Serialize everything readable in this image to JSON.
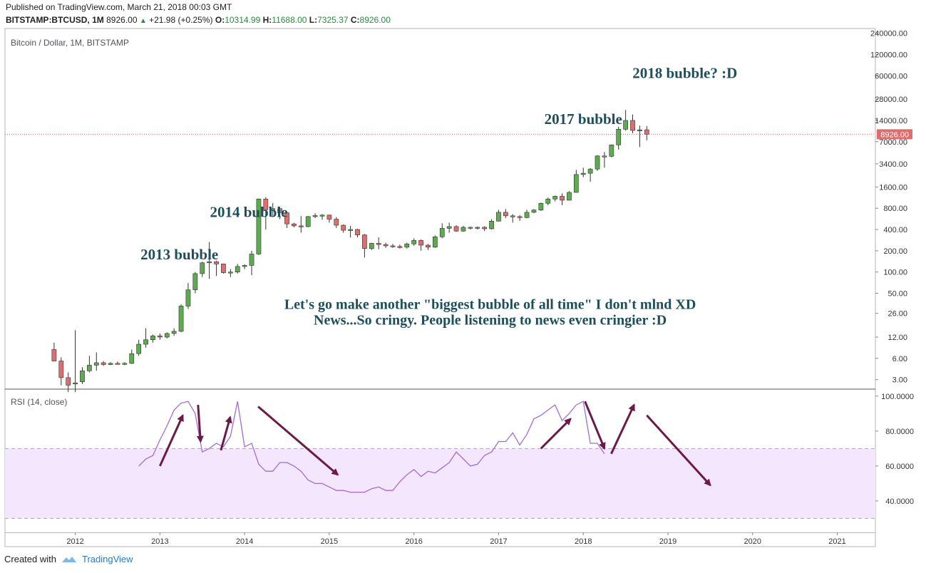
{
  "published": "Published on TradingView.com, March 21, 2018 00:03 GMT",
  "header": {
    "symbol": "BITSTAMP:BTCUSD, 1M",
    "price": "8926.00",
    "change": "+21.98 (+0.25%)",
    "o_label": "O:",
    "o": "10314.99",
    "h_label": "H:",
    "h": "11688.00",
    "l_label": "L:",
    "l": "7325.37",
    "c_label": "C:",
    "c": "8926.00"
  },
  "footer": {
    "created_with": "Created with",
    "brand": "TradingView"
  },
  "colors": {
    "up": "#5cab4e",
    "down": "#e06d6d",
    "annotation": "#1e4e5c",
    "rsi": "#a36bd6",
    "arrow": "#6b1a4a",
    "rsi_band": "#f4e6fc",
    "price_line": "#e06d6d"
  },
  "chart_data": [
    {
      "type": "candlestick",
      "title": "Bitcoin / Dollar, 1M, BITSTAMP",
      "scale": "log",
      "ylim": [
        2.2,
        280000
      ],
      "xlim": [
        2011.17,
        2021.45
      ],
      "x_ticks": [
        "2012",
        "2013",
        "2014",
        "2015",
        "2016",
        "2017",
        "2018",
        "2019",
        "2020",
        "2021"
      ],
      "y_ticks": [
        "240000.00",
        "120000.00",
        "60000.00",
        "28000.00",
        "14000.00",
        "7000.00",
        "3400.00",
        "1600.00",
        "800.00",
        "400.00",
        "200.00",
        "100.00",
        "50.00",
        "26.00",
        "12.00",
        "6.00",
        "3.00"
      ],
      "last_price_label": "8926.00",
      "last_price": 8926,
      "annotations": [
        {
          "text": "2013 bubble",
          "x": 2013.23,
          "y": 150
        },
        {
          "text": "2014 bubble",
          "x": 2014.05,
          "y": 600
        },
        {
          "text": "2017 bubble",
          "x": 2018.0,
          "y": 12400
        },
        {
          "text": "2018 bubble? :D",
          "x": 2019.2,
          "y": 56000
        },
        {
          "text": "Let's go make another \"biggest bubble of all time\" I don't mlnd XD",
          "x": 2016.9,
          "y": 30
        },
        {
          "text": "News...So cringy. People listening to news even cringier :D",
          "x": 2016.9,
          "y": 18
        }
      ],
      "candles": [
        {
          "t": "2011-09",
          "o": 8.0,
          "h": 10.0,
          "l": 6.0,
          "c": 5.5
        },
        {
          "t": "2011-10",
          "o": 5.5,
          "h": 6.2,
          "l": 2.5,
          "c": 3.2
        },
        {
          "t": "2011-11",
          "o": 3.2,
          "h": 3.8,
          "l": 2.0,
          "c": 2.5
        },
        {
          "t": "2011-12",
          "o": 2.6,
          "h": 15.0,
          "l": 2.0,
          "c": 2.7
        },
        {
          "t": "2012-01",
          "o": 2.8,
          "h": 4.5,
          "l": 2.6,
          "c": 4.0
        },
        {
          "t": "2012-02",
          "o": 4.0,
          "h": 6.5,
          "l": 3.8,
          "c": 4.8
        },
        {
          "t": "2012-03",
          "o": 4.8,
          "h": 7.3,
          "l": 4.0,
          "c": 5.2
        },
        {
          "t": "2012-04",
          "o": 5.2,
          "h": 5.5,
          "l": 4.7,
          "c": 4.9
        },
        {
          "t": "2012-05",
          "o": 4.9,
          "h": 5.3,
          "l": 4.8,
          "c": 5.1
        },
        {
          "t": "2012-06",
          "o": 5.1,
          "h": 5.4,
          "l": 4.9,
          "c": 5.0
        },
        {
          "t": "2012-07",
          "o": 5.0,
          "h": 5.3,
          "l": 4.8,
          "c": 5.1
        },
        {
          "t": "2012-08",
          "o": 5.1,
          "h": 8.0,
          "l": 5.0,
          "c": 7.0
        },
        {
          "t": "2012-09",
          "o": 7.0,
          "h": 11.0,
          "l": 6.5,
          "c": 9.5
        },
        {
          "t": "2012-10",
          "o": 9.5,
          "h": 16.0,
          "l": 8.5,
          "c": 11.0
        },
        {
          "t": "2012-11",
          "o": 11.0,
          "h": 13.0,
          "l": 10.0,
          "c": 12.5
        },
        {
          "t": "2012-12",
          "o": 12.5,
          "h": 13.5,
          "l": 11.0,
          "c": 12.0
        },
        {
          "t": "2013-01",
          "o": 12.0,
          "h": 14.0,
          "l": 11.5,
          "c": 13.5
        },
        {
          "t": "2013-02",
          "o": 13.5,
          "h": 16.0,
          "l": 12.5,
          "c": 14.5
        },
        {
          "t": "2013-03",
          "o": 14.5,
          "h": 35.0,
          "l": 14.0,
          "c": 33.0
        },
        {
          "t": "2013-04",
          "o": 33.0,
          "h": 70.0,
          "l": 30.0,
          "c": 56.0
        },
        {
          "t": "2013-05",
          "o": 56.0,
          "h": 100.0,
          "l": 50.0,
          "c": 95.0
        },
        {
          "t": "2013-06",
          "o": 95.0,
          "h": 140.0,
          "l": 85.0,
          "c": 135.0
        },
        {
          "t": "2013-07",
          "o": 135.0,
          "h": 266.0,
          "l": 80.0,
          "c": 140.0
        },
        {
          "t": "2013-08",
          "o": 140.0,
          "h": 145.0,
          "l": 88.0,
          "c": 130.0
        },
        {
          "t": "2013-09",
          "o": 130.0,
          "h": 132.0,
          "l": 95.0,
          "c": 98.0
        },
        {
          "t": "2013-10",
          "o": 98.0,
          "h": 110.0,
          "l": 85.0,
          "c": 100.0
        },
        {
          "t": "2013-11",
          "o": 100.0,
          "h": 130.0,
          "l": 95.0,
          "c": 120.0
        },
        {
          "t": "2013-12",
          "o": 120.0,
          "h": 128.0,
          "l": 110.0,
          "c": 124.0
        },
        {
          "t": "2014-01",
          "o": 124.0,
          "h": 200.0,
          "l": 90.0,
          "c": 180.0
        },
        {
          "t": "2014-02",
          "o": 180.0,
          "h": 1100.0,
          "l": 175.0,
          "c": 1080.0
        },
        {
          "t": "2014-03",
          "o": 1080.0,
          "h": 1150.0,
          "l": 400.0,
          "c": 760.0
        },
        {
          "t": "2014-04",
          "o": 760.0,
          "h": 950.0,
          "l": 600.0,
          "c": 790.0
        },
        {
          "t": "2014-05",
          "o": 790.0,
          "h": 800.0,
          "l": 560.0,
          "c": 690.0
        },
        {
          "t": "2014-06",
          "o": 690.0,
          "h": 720.0,
          "l": 420.0,
          "c": 480.0
        },
        {
          "t": "2014-07",
          "o": 480.0,
          "h": 500.0,
          "l": 430.0,
          "c": 450.0
        },
        {
          "t": "2014-08",
          "o": 450.0,
          "h": 620.0,
          "l": 360.0,
          "c": 440.0
        },
        {
          "t": "2014-09",
          "o": 440.0,
          "h": 620.0,
          "l": 430.0,
          "c": 610.0
        },
        {
          "t": "2014-10",
          "o": 610.0,
          "h": 680.0,
          "l": 580.0,
          "c": 630.0
        },
        {
          "t": "2014-11",
          "o": 630.0,
          "h": 660.0,
          "l": 550.0,
          "c": 640.0
        },
        {
          "t": "2014-12",
          "o": 640.0,
          "h": 650.0,
          "l": 500.0,
          "c": 560.0
        },
        {
          "t": "2015-01",
          "o": 560.0,
          "h": 600.0,
          "l": 420.0,
          "c": 460.0
        },
        {
          "t": "2015-02",
          "o": 460.0,
          "h": 470.0,
          "l": 360.0,
          "c": 390.0
        },
        {
          "t": "2015-03",
          "o": 390.0,
          "h": 450.0,
          "l": 310.0,
          "c": 400.0
        },
        {
          "t": "2015-04",
          "o": 400.0,
          "h": 410.0,
          "l": 310.0,
          "c": 335.0
        },
        {
          "t": "2015-05",
          "o": 335.0,
          "h": 345.0,
          "l": 160.0,
          "c": 215.0
        },
        {
          "t": "2015-06",
          "o": 215.0,
          "h": 260.0,
          "l": 205.0,
          "c": 255.0
        },
        {
          "t": "2015-07",
          "o": 255.0,
          "h": 310.0,
          "l": 210.0,
          "c": 245.0
        },
        {
          "t": "2015-08",
          "o": 245.0,
          "h": 260.0,
          "l": 220.0,
          "c": 235.0
        },
        {
          "t": "2015-09",
          "o": 235.0,
          "h": 250.0,
          "l": 220.0,
          "c": 230.0
        },
        {
          "t": "2015-10",
          "o": 230.0,
          "h": 245.0,
          "l": 215.0,
          "c": 225.0
        },
        {
          "t": "2015-11",
          "o": 225.0,
          "h": 260.0,
          "l": 215.0,
          "c": 250.0
        },
        {
          "t": "2015-12",
          "o": 250.0,
          "h": 300.0,
          "l": 235.0,
          "c": 280.0
        },
        {
          "t": "2016-01",
          "o": 280.0,
          "h": 290.0,
          "l": 200.0,
          "c": 240.0
        },
        {
          "t": "2016-02",
          "o": 240.0,
          "h": 250.0,
          "l": 205.0,
          "c": 225.0
        },
        {
          "t": "2016-03",
          "o": 225.0,
          "h": 330.0,
          "l": 220.0,
          "c": 315.0
        },
        {
          "t": "2016-04",
          "o": 315.0,
          "h": 490.0,
          "l": 300.0,
          "c": 415.0
        },
        {
          "t": "2016-05",
          "o": 415.0,
          "h": 500.0,
          "l": 360.0,
          "c": 440.0
        },
        {
          "t": "2016-06",
          "o": 440.0,
          "h": 460.0,
          "l": 370.0,
          "c": 380.0
        },
        {
          "t": "2016-07",
          "o": 380.0,
          "h": 450.0,
          "l": 370.0,
          "c": 430.0
        },
        {
          "t": "2016-08",
          "o": 430.0,
          "h": 440.0,
          "l": 400.0,
          "c": 415.0
        },
        {
          "t": "2016-09",
          "o": 415.0,
          "h": 440.0,
          "l": 400.0,
          "c": 430.0
        },
        {
          "t": "2016-10",
          "o": 430.0,
          "h": 445.0,
          "l": 380.0,
          "c": 410.0
        },
        {
          "t": "2016-11",
          "o": 410.0,
          "h": 560.0,
          "l": 400.0,
          "c": 525.0
        },
        {
          "t": "2016-12",
          "o": 525.0,
          "h": 760.0,
          "l": 520.0,
          "c": 700.0
        },
        {
          "t": "2017-01",
          "o": 700.0,
          "h": 780.0,
          "l": 580.0,
          "c": 625.0
        },
        {
          "t": "2017-02",
          "o": 625.0,
          "h": 660.0,
          "l": 500.0,
          "c": 610.0
        },
        {
          "t": "2017-03",
          "o": 610.0,
          "h": 640.0,
          "l": 530.0,
          "c": 590.0
        },
        {
          "t": "2017-04",
          "o": 590.0,
          "h": 760.0,
          "l": 580.0,
          "c": 700.0
        },
        {
          "t": "2017-05",
          "o": 700.0,
          "h": 780.0,
          "l": 680.0,
          "c": 755.0
        },
        {
          "t": "2017-06",
          "o": 755.0,
          "h": 960.0,
          "l": 730.0,
          "c": 940.0
        },
        {
          "t": "2017-07",
          "o": 940.0,
          "h": 1130.0,
          "l": 880.0,
          "c": 1080.0
        },
        {
          "t": "2017-08",
          "o": 1080.0,
          "h": 1210.0,
          "l": 1000.0,
          "c": 1180.0
        },
        {
          "t": "2017-09",
          "o": 1180.0,
          "h": 1300.0,
          "l": 880.0,
          "c": 1040.0
        },
        {
          "t": "2017-10",
          "o": 1040.0,
          "h": 1400.0,
          "l": 1030.0,
          "c": 1340.0
        },
        {
          "t": "2017-11",
          "o": 1340.0,
          "h": 2800.0,
          "l": 1330.0,
          "c": 2400.0
        },
        {
          "t": "2017-12",
          "o": 2400.0,
          "h": 3000.0,
          "l": 2200.0,
          "c": 2500.0
        },
        {
          "t": "2018-01",
          "o": 2500.0,
          "h": 2950.0,
          "l": 1900.0,
          "c": 2870.0
        },
        {
          "t": "2018-02",
          "o": 2870.0,
          "h": 4500.0,
          "l": 2700.0,
          "c": 4400.0
        },
        {
          "t": "2018-03",
          "o": 4400.0,
          "h": 5000.0,
          "l": 3000.0,
          "c": 4350.0
        },
        {
          "t": "2018-04",
          "o": 4350.0,
          "h": 6400.0,
          "l": 4200.0,
          "c": 6300.0
        },
        {
          "t": "2018-05",
          "o": 6300.0,
          "h": 11400.0,
          "l": 5400.0,
          "c": 10500.0
        },
        {
          "t": "2018-06",
          "o": 10500.0,
          "h": 19700.0,
          "l": 10000.0,
          "c": 14000.0
        },
        {
          "t": "2018-07",
          "o": 14000.0,
          "h": 17000.0,
          "l": 9200.0,
          "c": 10100.0
        },
        {
          "t": "2018-08",
          "o": 10100.0,
          "h": 11800.0,
          "l": 5900.0,
          "c": 10300.0
        },
        {
          "t": "2018-09",
          "o": 10315.0,
          "h": 11688.0,
          "l": 7325.0,
          "c": 8926.0
        }
      ]
    },
    {
      "type": "line",
      "title": "RSI (14, close)",
      "ylim": [
        22,
        104
      ],
      "band": [
        30,
        70
      ],
      "y_ticks": [
        "100.0000",
        "80.0000",
        "60.0000",
        "40.0000"
      ],
      "series": [
        {
          "name": "RSI",
          "values": [
            60,
            64,
            66,
            75,
            83,
            92,
            96,
            97,
            90,
            68,
            70,
            73,
            71,
            77,
            97,
            71,
            73,
            61,
            57,
            57,
            62,
            62,
            60,
            57,
            52,
            50,
            50,
            48,
            46,
            46,
            45,
            45,
            45,
            47,
            48,
            46,
            46,
            51,
            55,
            58,
            54,
            57,
            56,
            59,
            62,
            68,
            64,
            60,
            61,
            66,
            68,
            74,
            74,
            79,
            72,
            78,
            87,
            89,
            92,
            95,
            86,
            90,
            95,
            97,
            73,
            73,
            67
          ],
          "start": 2012.75
        }
      ],
      "arrows": [
        {
          "from": [
            2013.0,
            60
          ],
          "to": [
            2013.27,
            89
          ]
        },
        {
          "from": [
            2013.45,
            95
          ],
          "to": [
            2013.48,
            74
          ]
        },
        {
          "from": [
            2013.72,
            69
          ],
          "to": [
            2013.83,
            88
          ]
        },
        {
          "from": [
            2014.16,
            94
          ],
          "to": [
            2015.1,
            55
          ]
        },
        {
          "from": [
            2017.5,
            70
          ],
          "to": [
            2017.85,
            87
          ]
        },
        {
          "from": [
            2018.02,
            97
          ],
          "to": [
            2018.25,
            70
          ]
        },
        {
          "from": [
            2018.33,
            67
          ],
          "to": [
            2018.6,
            95
          ]
        },
        {
          "from": [
            2018.75,
            89
          ],
          "to": [
            2019.5,
            49
          ]
        }
      ]
    }
  ]
}
